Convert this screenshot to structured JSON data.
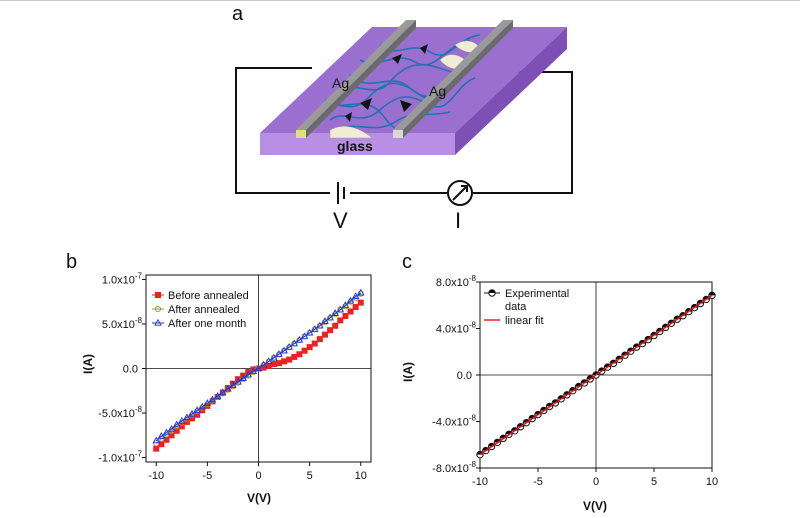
{
  "figure": {
    "panel_a": "a",
    "panel_b": "b",
    "panel_c": "c",
    "diagram": {
      "electrode_left": "Ag",
      "electrode_right": "Ag",
      "substrate": "glass",
      "voltage_symbol": "V",
      "current_symbol": "I"
    }
  },
  "chart_data": [
    {
      "type": "line",
      "panel": "b",
      "xlabel": "V(V)",
      "ylabel": "I(A)",
      "xlim": [
        -11,
        11
      ],
      "ylim": [
        -1.05e-07,
        1.05e-07
      ],
      "xticks": [
        -10,
        -5,
        0,
        5,
        10
      ],
      "xtick_labels": [
        "-10",
        "-5",
        "0",
        "5",
        "10"
      ],
      "yticks": [
        1e-07,
        5e-08,
        0,
        -5e-08,
        -1e-07
      ],
      "ytick_labels": [
        "1.0x10",
        "5.0x10",
        "0.0",
        "-5.0x10",
        "-1.0x10"
      ],
      "ytick_exponents": [
        "-7",
        "-8",
        "",
        "-8",
        "-7"
      ],
      "legend_position": "top-left",
      "series": [
        {
          "name": "Before annealed",
          "color": "#ee2020",
          "marker": "square",
          "x": [
            -10,
            -9.5,
            -9,
            -8.5,
            -8,
            -7.5,
            -7,
            -6.5,
            -6,
            -5.5,
            -5,
            -4.5,
            -4,
            -3.5,
            -3,
            -2.5,
            -2,
            -1.5,
            -1,
            -0.5,
            0,
            0.5,
            1,
            1.5,
            2,
            2.5,
            3,
            3.5,
            4,
            4.5,
            5,
            5.5,
            6,
            6.5,
            7,
            7.5,
            8,
            8.5,
            9,
            9.5,
            10
          ],
          "y": [
            -9e-08,
            -8.5e-08,
            -8e-08,
            -7.5e-08,
            -7e-08,
            -6.5e-08,
            -6e-08,
            -5.6e-08,
            -5.2e-08,
            -4.7e-08,
            -4.2e-08,
            -3.7e-08,
            -3.2e-08,
            -2.7e-08,
            -2.2e-08,
            -1.7e-08,
            -1.2e-08,
            -8e-09,
            -4e-09,
            -1e-09,
            0,
            1e-09,
            3e-09,
            5e-09,
            6e-09,
            8e-09,
            1e-08,
            1.3e-08,
            1.6e-08,
            2e-08,
            2.4e-08,
            2.8e-08,
            3.3e-08,
            3.8e-08,
            4.3e-08,
            4.8e-08,
            5.4e-08,
            5.9e-08,
            6.4e-08,
            6.9e-08,
            7.4e-08
          ]
        },
        {
          "name": "After annealed",
          "color": "#999933",
          "marker": "circle",
          "x": [
            -10,
            -9.5,
            -9,
            -8.5,
            -8,
            -7.5,
            -7,
            -6.5,
            -6,
            -5.5,
            -5,
            -4.5,
            -4,
            -3.5,
            -3,
            -2.5,
            -2,
            -1.5,
            -1,
            -0.5,
            0,
            0.5,
            1,
            1.5,
            2,
            2.5,
            3,
            3.5,
            4,
            4.5,
            5,
            5.5,
            6,
            6.5,
            7,
            7.5,
            8,
            8.5,
            9,
            9.5,
            10
          ],
          "y": [
            -8.4e-08,
            -7.9e-08,
            -7.4e-08,
            -7e-08,
            -6.5e-08,
            -6.1e-08,
            -5.7e-08,
            -5.2e-08,
            -4.8e-08,
            -4.4e-08,
            -4e-08,
            -3.6e-08,
            -3.2e-08,
            -2.8e-08,
            -2.4e-08,
            -2e-08,
            -1.6e-08,
            -1.2e-08,
            -8e-09,
            -4e-09,
            0,
            4e-09,
            8e-09,
            1.2e-08,
            1.6e-08,
            2e-08,
            2.4e-08,
            2.8e-08,
            3.2e-08,
            3.6e-08,
            4e-08,
            4.4e-08,
            4.8e-08,
            5.2e-08,
            5.7e-08,
            6.1e-08,
            6.6e-08,
            7e-08,
            7.5e-08,
            7.9e-08,
            8.4e-08
          ]
        },
        {
          "name": "After one month",
          "color": "#2233dd",
          "marker": "triangle",
          "x": [
            -10,
            -9.5,
            -9,
            -8.5,
            -8,
            -7.5,
            -7,
            -6.5,
            -6,
            -5.5,
            -5,
            -4.5,
            -4,
            -3.5,
            -3,
            -2.5,
            -2,
            -1.5,
            -1,
            -0.5,
            0,
            0.5,
            1,
            1.5,
            2,
            2.5,
            3,
            3.5,
            4,
            4.5,
            5,
            5.5,
            6,
            6.5,
            7,
            7.5,
            8,
            8.5,
            9,
            9.5,
            10
          ],
          "y": [
            -8.1e-08,
            -7.6e-08,
            -7.2e-08,
            -6.8e-08,
            -6.3e-08,
            -5.9e-08,
            -5.5e-08,
            -5.1e-08,
            -4.7e-08,
            -4.3e-08,
            -3.9e-08,
            -3.5e-08,
            -3.1e-08,
            -2.7e-08,
            -2.3e-08,
            -1.9e-08,
            -1.5e-08,
            -1.1e-08,
            -7e-09,
            -3e-09,
            0,
            4e-09,
            8e-09,
            1.2e-08,
            1.6e-08,
            2e-08,
            2.4e-08,
            2.8e-08,
            3.2e-08,
            3.6e-08,
            4e-08,
            4.4e-08,
            4.8e-08,
            5.3e-08,
            5.7e-08,
            6.2e-08,
            6.6e-08,
            7.1e-08,
            7.6e-08,
            8.1e-08,
            8.5e-08
          ]
        }
      ]
    },
    {
      "type": "scatter",
      "panel": "c",
      "xlabel": "V(V)",
      "ylabel": "I(A)",
      "xlim": [
        -10,
        10
      ],
      "ylim": [
        -8e-08,
        8e-08
      ],
      "xticks": [
        -10,
        -5,
        0,
        5,
        10
      ],
      "xtick_labels": [
        "-10",
        "-5",
        "0",
        "5",
        "10"
      ],
      "yticks": [
        8e-08,
        4e-08,
        0,
        -4e-08,
        -8e-08
      ],
      "ytick_labels": [
        "8.0x10",
        "4.0x10",
        "0.0",
        "-4.0x10",
        "-8.0x10"
      ],
      "ytick_exponents": [
        "-8",
        "-8",
        "",
        "-8",
        "-8"
      ],
      "legend_position": "top-left",
      "series": [
        {
          "name": "Experimental data",
          "color": "#111111",
          "marker": "half-filled-circle",
          "x": [
            -10,
            -9.5,
            -9,
            -8.5,
            -8,
            -7.5,
            -7,
            -6.5,
            -6,
            -5.5,
            -5,
            -4.5,
            -4,
            -3.5,
            -3,
            -2.5,
            -2,
            -1.5,
            -1,
            -0.5,
            0,
            0.5,
            1,
            1.5,
            2,
            2.5,
            3,
            3.5,
            4,
            4.5,
            5,
            5.5,
            6,
            6.5,
            7,
            7.5,
            8,
            8.5,
            9,
            9.5,
            10
          ],
          "y": [
            -6.85e-08,
            -6.5e-08,
            -6.15e-08,
            -5.8e-08,
            -5.45e-08,
            -5.1e-08,
            -4.8e-08,
            -4.45e-08,
            -4.1e-08,
            -3.75e-08,
            -3.4e-08,
            -3.05e-08,
            -2.7e-08,
            -2.4e-08,
            -2.05e-08,
            -1.7e-08,
            -1.35e-08,
            -1e-08,
            -6.8e-09,
            -3.4e-09,
            0,
            3.4e-09,
            6.8e-09,
            1e-08,
            1.35e-08,
            1.7e-08,
            2.05e-08,
            2.4e-08,
            2.7e-08,
            3.05e-08,
            3.4e-08,
            3.75e-08,
            4.1e-08,
            4.45e-08,
            4.8e-08,
            5.1e-08,
            5.45e-08,
            5.8e-08,
            6.15e-08,
            6.5e-08,
            6.85e-08
          ]
        },
        {
          "name": "linear fit",
          "color": "#ee1111",
          "marker": "none",
          "x": [
            -10,
            10
          ],
          "y": [
            -6.85e-08,
            6.85e-08
          ]
        }
      ],
      "legend_labels": [
        "Experimental",
        "data",
        "linear fit"
      ]
    }
  ]
}
